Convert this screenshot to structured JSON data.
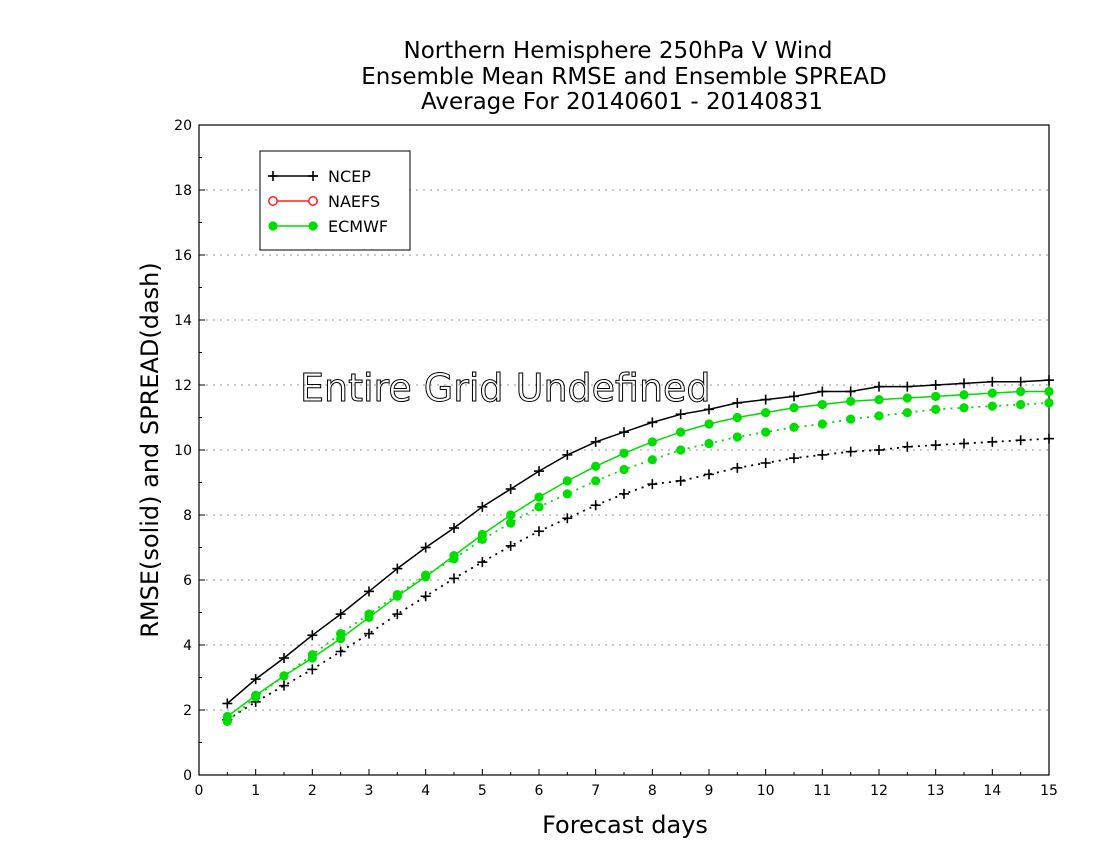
{
  "chart_data": {
    "type": "line",
    "title_lines": [
      "Northern Hemisphere 250hPa V Wind",
      "Ensemble Mean RMSE and Ensemble SPREAD",
      "Average For 20140601 - 20140831"
    ],
    "xlabel": "Forecast days",
    "ylabel": "RMSE(solid) and SPREAD(dash)",
    "xlim": [
      0,
      15
    ],
    "ylim": [
      0,
      20
    ],
    "xticks": [
      "0",
      "1",
      "2",
      "3",
      "4",
      "5",
      "6",
      "7",
      "8",
      "9",
      "10",
      "11",
      "12",
      "13",
      "14",
      "15"
    ],
    "yticks": [
      "0",
      "2",
      "4",
      "6",
      "8",
      "10",
      "12",
      "14",
      "16",
      "18",
      "20"
    ],
    "grid": true,
    "legend_position": "top-left",
    "annotation": "Entire Grid Undefined",
    "x": [
      0.5,
      1.0,
      1.5,
      2.0,
      2.5,
      3.0,
      3.5,
      4.0,
      4.5,
      5.0,
      5.5,
      6.0,
      6.5,
      7.0,
      7.5,
      8.0,
      8.5,
      9.0,
      9.5,
      10.0,
      10.5,
      11.0,
      11.5,
      12.0,
      12.5,
      13.0,
      13.5,
      14.0,
      14.5,
      15.0
    ],
    "series": [
      {
        "name": "NCEP",
        "color": "#000000",
        "marker": "plus",
        "rmse": [
          2.2,
          2.95,
          3.6,
          4.3,
          4.95,
          5.65,
          6.35,
          7.0,
          7.6,
          8.25,
          8.8,
          9.35,
          9.85,
          10.25,
          10.55,
          10.85,
          11.1,
          11.25,
          11.45,
          11.55,
          11.65,
          11.8,
          11.8,
          11.95,
          11.95,
          12.0,
          12.05,
          12.1,
          12.1,
          12.15
        ],
        "spread": [
          1.7,
          2.25,
          2.75,
          3.25,
          3.8,
          4.35,
          4.95,
          5.5,
          6.05,
          6.55,
          7.05,
          7.5,
          7.9,
          8.3,
          8.65,
          8.95,
          9.05,
          9.25,
          9.45,
          9.6,
          9.75,
          9.85,
          9.95,
          10.0,
          10.1,
          10.15,
          10.2,
          10.25,
          10.3,
          10.35
        ]
      },
      {
        "name": "NAEFS",
        "color": "#ff2020",
        "marker": "open-circle",
        "rmse": [],
        "spread": []
      },
      {
        "name": "ECMWF",
        "color": "#00dd00",
        "marker": "filled-circle",
        "rmse": [
          1.8,
          2.45,
          3.05,
          3.6,
          4.2,
          4.85,
          5.5,
          6.1,
          6.75,
          7.4,
          8.0,
          8.55,
          9.05,
          9.5,
          9.9,
          10.25,
          10.55,
          10.8,
          11.0,
          11.15,
          11.3,
          11.4,
          11.5,
          11.55,
          11.6,
          11.65,
          11.7,
          11.75,
          11.8,
          11.8
        ],
        "spread": [
          1.65,
          2.4,
          3.05,
          3.7,
          4.35,
          4.95,
          5.55,
          6.15,
          6.65,
          7.25,
          7.75,
          8.25,
          8.65,
          9.05,
          9.4,
          9.7,
          10.0,
          10.2,
          10.4,
          10.55,
          10.7,
          10.8,
          10.95,
          11.05,
          11.15,
          11.25,
          11.3,
          11.35,
          11.4,
          11.45
        ]
      }
    ]
  }
}
